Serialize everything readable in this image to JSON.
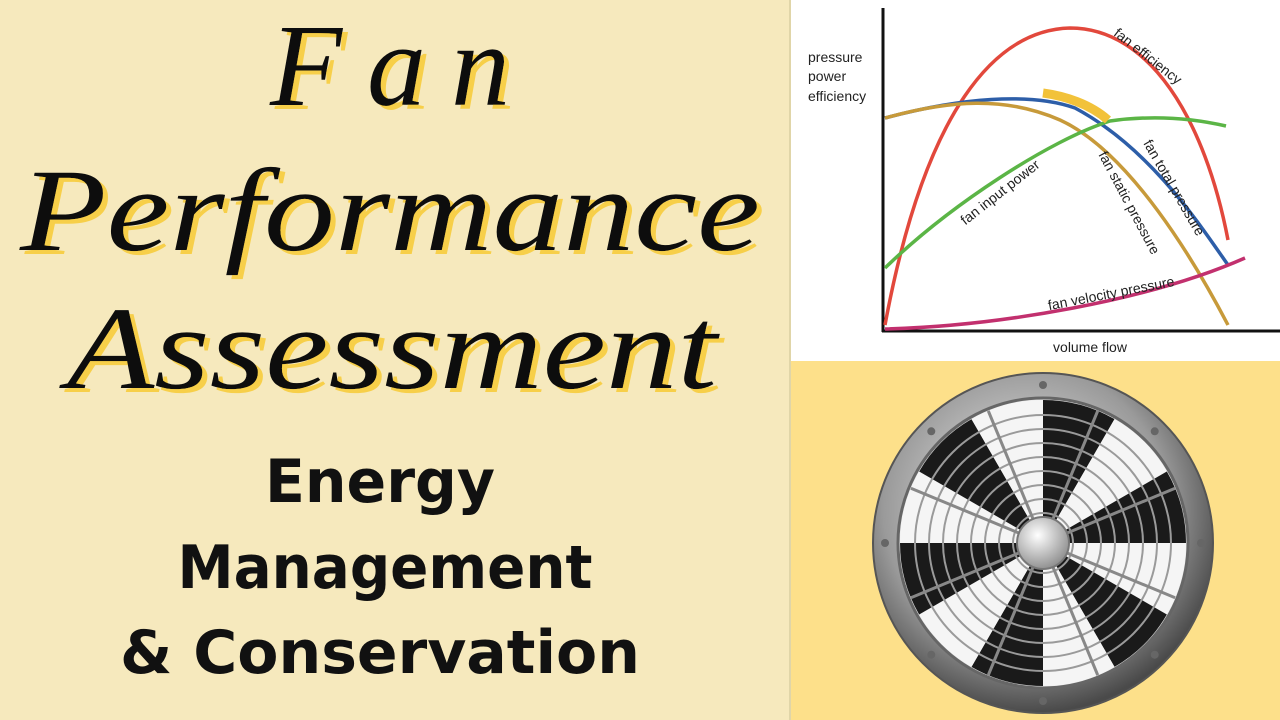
{
  "title": {
    "lines": [
      "Fan",
      "Performance",
      "Assessment"
    ]
  },
  "subtitle": {
    "lines": [
      "Energy",
      "Management",
      "& Conservation"
    ]
  },
  "diagram": {
    "y_axis_labels": [
      "pressure",
      "power",
      "efficiency"
    ],
    "x_axis_label": "volume flow",
    "curves": [
      {
        "label": "fan efficiency"
      },
      {
        "label": "fan total pressure"
      },
      {
        "label": "fan static pressure"
      },
      {
        "label": "fan input power"
      },
      {
        "label": "fan velocity pressure"
      }
    ]
  }
}
